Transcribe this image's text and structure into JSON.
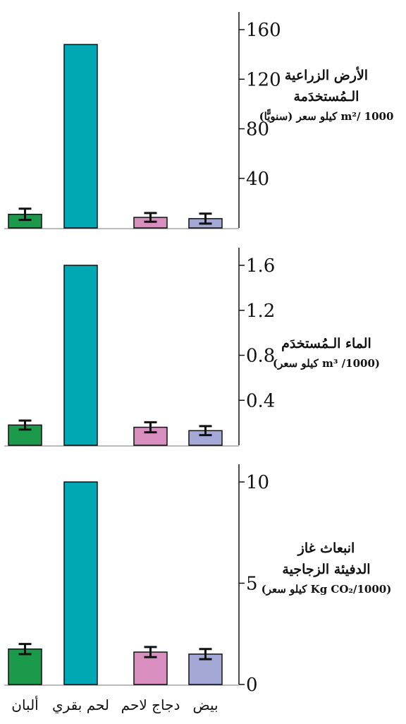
{
  "chart_data": [
    {
      "type": "bar",
      "categories": [
        "ألبان",
        "لحم بقري",
        "دجاج لاحم",
        "بيض"
      ],
      "values": [
        11,
        148,
        8.5,
        7.5
      ],
      "errors": [
        4.5,
        0,
        3.5,
        4
      ],
      "colors": [
        "#1a9a4a",
        "#00a8b5",
        "#d98ec0",
        "#a3a8d6"
      ],
      "ylim": [
        0,
        160
      ],
      "yticks": [
        "40",
        "80",
        "120",
        "160"
      ],
      "ytick_values": [
        40,
        80,
        120,
        160
      ],
      "ylabel_lines": [
        "الأرض الزراعية",
        "الـمُستخدَمة",
        "1000 /m² كيلو سعر (سنويًّا)"
      ]
    },
    {
      "type": "bar",
      "categories": [
        "ألبان",
        "لحم بقري",
        "دجاج لاحم",
        "بيض"
      ],
      "values": [
        0.18,
        1.6,
        0.16,
        0.13
      ],
      "errors": [
        0.04,
        0,
        0.045,
        0.04
      ],
      "colors": [
        "#1a9a4a",
        "#00a8b5",
        "#d98ec0",
        "#a3a8d6"
      ],
      "ylim": [
        0,
        1.6
      ],
      "yticks": [
        "0.4",
        "0.8",
        "1.2",
        "1.6"
      ],
      "ytick_values": [
        0.4,
        0.8,
        1.2,
        1.6
      ],
      "ylabel_lines": [
        "الماء الـمُستخدَم",
        "(1000/ m³ كيلو سعر)"
      ]
    },
    {
      "type": "bar",
      "categories": [
        "ألبان",
        "لحم بقري",
        "دجاج لاحم",
        "بيض"
      ],
      "values": [
        1.75,
        10,
        1.6,
        1.5
      ],
      "errors": [
        0.25,
        0,
        0.25,
        0.25
      ],
      "colors": [
        "#1a9a4a",
        "#00a8b5",
        "#d98ec0",
        "#a3a8d6"
      ],
      "ylim": [
        0,
        10
      ],
      "yticks": [
        "0",
        "5",
        "10"
      ],
      "ytick_values": [
        0,
        5,
        10
      ],
      "ylabel_lines": [
        "انبعاث غاز",
        "الدفيئة الزجاجية",
        "(1000/Kg CO₂ كيلو سعر)"
      ]
    }
  ],
  "x_labels": [
    "ألبان",
    "لحم بقري",
    "دجاج لاحم",
    "بيض"
  ]
}
